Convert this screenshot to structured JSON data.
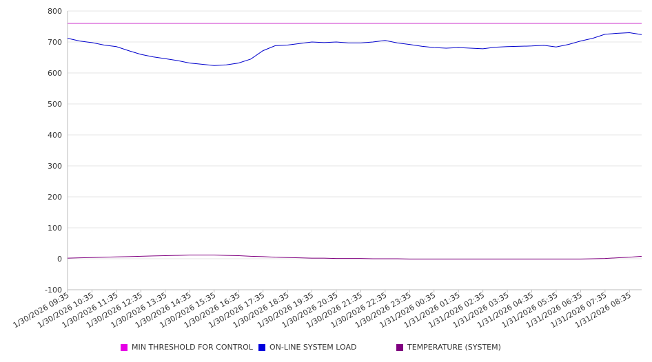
{
  "chart_data": {
    "type": "line",
    "title": "",
    "xlabel": "",
    "ylabel": "",
    "ylim": [
      -100,
      800
    ],
    "y_ticks": [
      800,
      700,
      600,
      500,
      400,
      300,
      200,
      100,
      0,
      -100
    ],
    "grid": true,
    "legend_position": "bottom",
    "x_tick_labels": [
      "1/30/2026 09:35",
      "1/30/2026 10:35",
      "1/30/2026 11:35",
      "1/30/2026 12:35",
      "1/30/2026 13:35",
      "1/30/2026 14:35",
      "1/30/2026 15:35",
      "1/30/2026 16:35",
      "1/30/2026 17:35",
      "1/30/2026 18:35",
      "1/30/2026 19:35",
      "1/30/2026 20:35",
      "1/30/2026 21:35",
      "1/30/2026 22:35",
      "1/30/2026 23:35",
      "1/31/2026 00:35",
      "1/31/2026 01:35",
      "1/31/2026 02:35",
      "1/31/2026 03:35",
      "1/31/2026 04:35",
      "1/31/2026 05:35",
      "1/31/2026 06:35",
      "1/31/2026 07:35",
      "1/31/2026 08:35"
    ],
    "x": [
      "1/30/2026 09:35",
      "1/30/2026 10:05",
      "1/30/2026 10:35",
      "1/30/2026 11:05",
      "1/30/2026 11:35",
      "1/30/2026 12:05",
      "1/30/2026 12:35",
      "1/30/2026 13:05",
      "1/30/2026 13:35",
      "1/30/2026 14:05",
      "1/30/2026 14:35",
      "1/30/2026 15:05",
      "1/30/2026 15:35",
      "1/30/2026 16:05",
      "1/30/2026 16:35",
      "1/30/2026 17:05",
      "1/30/2026 17:35",
      "1/30/2026 18:05",
      "1/30/2026 18:35",
      "1/30/2026 19:05",
      "1/30/2026 19:35",
      "1/30/2026 20:05",
      "1/30/2026 20:35",
      "1/30/2026 21:05",
      "1/30/2026 21:35",
      "1/30/2026 22:05",
      "1/30/2026 22:35",
      "1/30/2026 23:05",
      "1/30/2026 23:35",
      "1/31/2026 00:05",
      "1/31/2026 00:35",
      "1/31/2026 01:05",
      "1/31/2026 01:35",
      "1/31/2026 02:05",
      "1/31/2026 02:35",
      "1/31/2026 03:05",
      "1/31/2026 03:35",
      "1/31/2026 04:05",
      "1/31/2026 04:35",
      "1/31/2026 05:05",
      "1/31/2026 05:35",
      "1/31/2026 06:05",
      "1/31/2026 06:35",
      "1/31/2026 07:05",
      "1/31/2026 07:35",
      "1/31/2026 08:05",
      "1/31/2026 08:35",
      "1/31/2026 09:05"
    ],
    "series": [
      {
        "name": "MIN THRESHOLD FOR CONTROL",
        "color": "#cc33cc",
        "values": [
          760,
          760,
          760,
          760,
          760,
          760,
          760,
          760,
          760,
          760,
          760,
          760,
          760,
          760,
          760,
          760,
          760,
          760,
          760,
          760,
          760,
          760,
          760,
          760,
          760,
          760,
          760,
          760,
          760,
          760,
          760,
          760,
          760,
          760,
          760,
          760,
          760,
          760,
          760,
          760,
          760,
          760,
          760,
          760,
          760,
          760,
          760,
          760
        ]
      },
      {
        "name": "ON-LINE SYSTEM LOAD",
        "color": "#0000cc",
        "values": [
          712,
          703,
          698,
          690,
          685,
          672,
          660,
          652,
          646,
          640,
          632,
          628,
          624,
          626,
          632,
          645,
          672,
          688,
          690,
          695,
          700,
          698,
          700,
          697,
          697,
          700,
          705,
          697,
          692,
          686,
          682,
          680,
          682,
          680,
          678,
          683,
          685,
          686,
          687,
          689,
          684,
          692,
          703,
          712,
          725,
          728,
          730,
          724
        ]
      },
      {
        "name": "TEMPERATURE (SYSTEM)",
        "color": "#800080",
        "values": [
          2,
          3,
          4,
          5,
          6,
          7,
          8,
          9,
          10,
          11,
          12,
          12,
          12,
          11,
          10,
          8,
          7,
          5,
          4,
          3,
          2,
          2,
          1,
          1,
          1,
          0,
          0,
          0,
          -1,
          -1,
          -1,
          -1,
          -1,
          -1,
          -1,
          -1,
          -1,
          -1,
          -1,
          -1,
          -1,
          -1,
          -1,
          0,
          1,
          3,
          5,
          8
        ]
      }
    ]
  }
}
